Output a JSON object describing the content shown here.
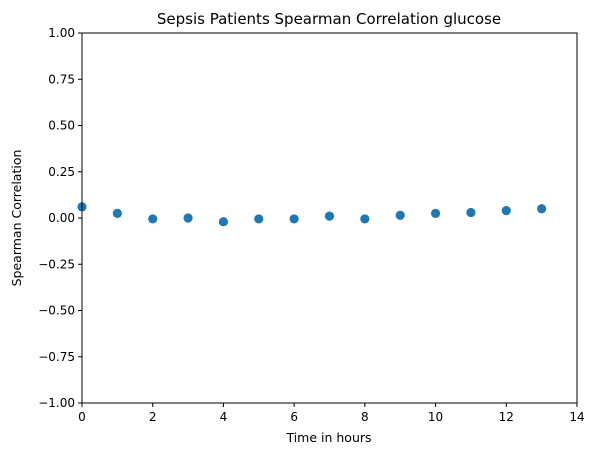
{
  "chart_data": {
    "type": "scatter",
    "title": "Sepsis Patients Spearman Correlation glucose",
    "xlabel": "Time in hours",
    "ylabel": "Spearman Correlation",
    "xlim": [
      0,
      14
    ],
    "ylim": [
      -1.0,
      1.0
    ],
    "x_ticks": [
      "0",
      "2",
      "4",
      "6",
      "8",
      "10",
      "12",
      "14"
    ],
    "y_ticks": [
      "1.00",
      "0.75",
      "0.50",
      "0.25",
      "0.00",
      "−0.25",
      "−0.50",
      "−0.75",
      "−1.00"
    ],
    "grid": false,
    "marker_color": "#1f77b4",
    "points": [
      {
        "x": 0,
        "y": 0.06
      },
      {
        "x": 1,
        "y": 0.025
      },
      {
        "x": 2,
        "y": -0.005
      },
      {
        "x": 3,
        "y": 0.0
      },
      {
        "x": 4,
        "y": -0.02
      },
      {
        "x": 5,
        "y": -0.005
      },
      {
        "x": 6,
        "y": -0.005
      },
      {
        "x": 7,
        "y": 0.01
      },
      {
        "x": 8,
        "y": -0.005
      },
      {
        "x": 9,
        "y": 0.015
      },
      {
        "x": 10,
        "y": 0.025
      },
      {
        "x": 11,
        "y": 0.03
      },
      {
        "x": 12,
        "y": 0.04
      },
      {
        "x": 13,
        "y": 0.05
      }
    ]
  }
}
